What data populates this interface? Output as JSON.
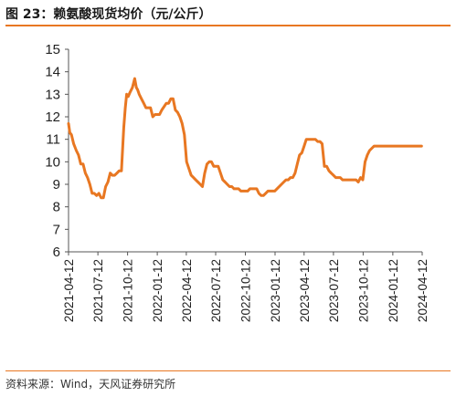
{
  "title": "图 23：赖氨酸现货均价（元/公斤）",
  "source": "资料来源：Wind，天风证券研究所",
  "colors": {
    "accent": "#e87722",
    "line": "#e87722",
    "axis": "#555555"
  },
  "chart_data": {
    "type": "line",
    "title": "",
    "xlabel": "",
    "ylabel": "",
    "ylim": [
      6,
      15
    ],
    "yticks": [
      6,
      7,
      8,
      9,
      10,
      11,
      12,
      13,
      14,
      15
    ],
    "xlim": [
      "2021-04-12",
      "2024-04-12"
    ],
    "xticks": [
      "2021-04-12",
      "2021-07-12",
      "2021-10-12",
      "2022-01-12",
      "2022-04-12",
      "2022-07-12",
      "2022-10-12",
      "2023-01-12",
      "2023-04-12",
      "2023-07-12",
      "2023-10-12",
      "2024-01-12",
      "2024-04-12"
    ],
    "grid": false,
    "legend": "none",
    "series": [
      {
        "name": "",
        "x": [
          "2021-04-12",
          "2021-04-16",
          "2021-04-21",
          "2021-04-28",
          "2021-05-06",
          "2021-05-13",
          "2021-05-20",
          "2021-05-27",
          "2021-06-03",
          "2021-06-10",
          "2021-06-17",
          "2021-06-24",
          "2021-07-01",
          "2021-07-08",
          "2021-07-15",
          "2021-07-22",
          "2021-07-29",
          "2021-08-05",
          "2021-08-12",
          "2021-08-19",
          "2021-08-26",
          "2021-09-02",
          "2021-09-09",
          "2021-09-16",
          "2021-09-23",
          "2021-09-30",
          "2021-10-05",
          "2021-10-09",
          "2021-10-14",
          "2021-10-20",
          "2021-10-27",
          "2021-11-03",
          "2021-11-08",
          "2021-11-12",
          "2021-11-17",
          "2021-11-24",
          "2021-12-01",
          "2021-12-08",
          "2021-12-15",
          "2021-12-22",
          "2021-12-29",
          "2022-01-05",
          "2022-01-12",
          "2022-01-19",
          "2022-01-26",
          "2022-02-09",
          "2022-02-16",
          "2022-02-23",
          "2022-03-02",
          "2022-03-09",
          "2022-03-16",
          "2022-03-23",
          "2022-03-30",
          "2022-04-06",
          "2022-04-13",
          "2022-04-20",
          "2022-04-27",
          "2022-05-04",
          "2022-05-11",
          "2022-05-18",
          "2022-05-25",
          "2022-06-01",
          "2022-06-08",
          "2022-06-15",
          "2022-06-22",
          "2022-06-29",
          "2022-07-06",
          "2022-07-13",
          "2022-07-20",
          "2022-07-27",
          "2022-08-03",
          "2022-08-10",
          "2022-08-17",
          "2022-08-24",
          "2022-08-31",
          "2022-09-07",
          "2022-09-14",
          "2022-09-21",
          "2022-09-28",
          "2022-10-05",
          "2022-10-12",
          "2022-10-19",
          "2022-10-26",
          "2022-11-02",
          "2022-11-09",
          "2022-11-16",
          "2022-11-23",
          "2022-11-30",
          "2022-12-07",
          "2022-12-14",
          "2022-12-21",
          "2022-12-28",
          "2023-01-04",
          "2023-01-11",
          "2023-01-18",
          "2023-02-01",
          "2023-02-08",
          "2023-02-15",
          "2023-02-22",
          "2023-03-01",
          "2023-03-08",
          "2023-03-15",
          "2023-03-22",
          "2023-03-29",
          "2023-04-05",
          "2023-04-12",
          "2023-04-19",
          "2023-04-26",
          "2023-05-03",
          "2023-05-10",
          "2023-05-17",
          "2023-05-24",
          "2023-05-31",
          "2023-06-07",
          "2023-06-14",
          "2023-06-21",
          "2023-06-28",
          "2023-07-05",
          "2023-07-12",
          "2023-07-19",
          "2023-07-26",
          "2023-08-02",
          "2023-08-09",
          "2023-08-16",
          "2023-08-23",
          "2023-08-30",
          "2023-09-06",
          "2023-09-13",
          "2023-09-20",
          "2023-09-27",
          "2023-10-04",
          "2023-10-11",
          "2023-10-18",
          "2023-10-25",
          "2023-11-01",
          "2023-11-08",
          "2023-11-15",
          "2023-11-22",
          "2023-11-29",
          "2023-12-06",
          "2023-12-13",
          "2023-12-20",
          "2023-12-27",
          "2024-01-03",
          "2024-01-10",
          "2024-01-17",
          "2024-01-24",
          "2024-01-31",
          "2024-02-07",
          "2024-02-21",
          "2024-02-28",
          "2024-03-06",
          "2024-03-13",
          "2024-03-20",
          "2024-03-27",
          "2024-04-03",
          "2024-04-10"
        ],
        "values": [
          11.7,
          11.3,
          11.2,
          10.8,
          10.5,
          10.3,
          9.9,
          9.9,
          9.5,
          9.3,
          9.0,
          8.6,
          8.6,
          8.5,
          8.6,
          8.4,
          8.4,
          8.9,
          9.1,
          9.5,
          9.4,
          9.4,
          9.5,
          9.6,
          9.6,
          11.5,
          12.4,
          13.0,
          12.9,
          13.1,
          13.3,
          13.7,
          13.3,
          13.2,
          13.0,
          12.8,
          12.6,
          12.4,
          12.4,
          12.4,
          12.0,
          12.1,
          12.1,
          12.1,
          12.3,
          12.6,
          12.6,
          12.8,
          12.8,
          12.3,
          12.2,
          12.0,
          11.7,
          11.2,
          10.0,
          9.7,
          9.4,
          9.3,
          9.2,
          9.1,
          9.0,
          8.9,
          9.5,
          9.9,
          10.0,
          10.0,
          9.8,
          9.8,
          9.8,
          9.5,
          9.2,
          9.1,
          9.0,
          8.9,
          8.9,
          8.8,
          8.8,
          8.8,
          8.7,
          8.7,
          8.7,
          8.7,
          8.8,
          8.8,
          8.8,
          8.8,
          8.6,
          8.5,
          8.5,
          8.6,
          8.7,
          8.7,
          8.7,
          8.7,
          8.8,
          9.0,
          9.1,
          9.2,
          9.2,
          9.3,
          9.3,
          9.5,
          9.9,
          10.3,
          10.4,
          10.7,
          11.0,
          11.0,
          11.0,
          11.0,
          11.0,
          10.9,
          10.9,
          10.8,
          9.8,
          9.8,
          9.6,
          9.5,
          9.4,
          9.3,
          9.3,
          9.3,
          9.2,
          9.2,
          9.2,
          9.2,
          9.2,
          9.2,
          9.2,
          9.1,
          9.3,
          9.2,
          10.0,
          10.3,
          10.5,
          10.6,
          10.7,
          10.7,
          10.7,
          10.7,
          10.7,
          10.7,
          10.7,
          10.7,
          10.7,
          10.7,
          10.7,
          10.7,
          10.7,
          10.7,
          10.7,
          10.7,
          10.7,
          10.7,
          10.7,
          10.7,
          10.7
        ]
      }
    ]
  }
}
